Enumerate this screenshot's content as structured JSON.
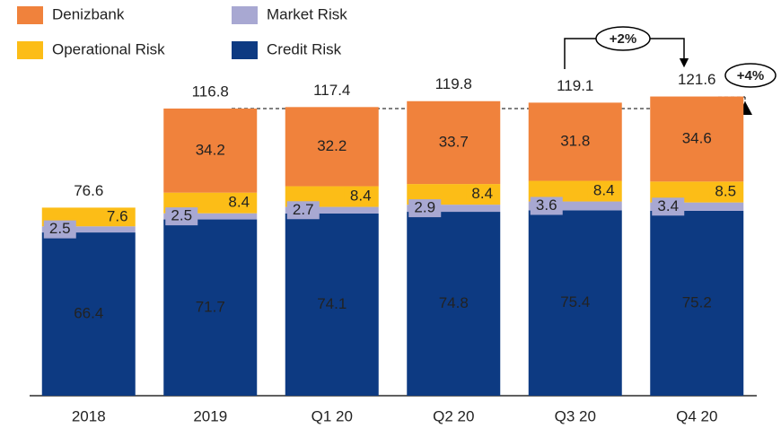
{
  "chart_data": {
    "type": "stacked_bar",
    "categories": [
      "2018",
      "2019",
      "Q1 20",
      "Q2 20",
      "Q3 20",
      "Q4 20"
    ],
    "series": [
      {
        "name": "Credit Risk",
        "color": "#0d3a82",
        "values": [
          66.4,
          71.7,
          74.1,
          74.8,
          75.4,
          75.2
        ]
      },
      {
        "name": "Market Risk",
        "color": "#a8a8d2",
        "values": [
          2.5,
          2.5,
          2.7,
          2.9,
          3.6,
          3.4
        ]
      },
      {
        "name": "Operational Risk",
        "color": "#fcbd17",
        "values": [
          7.6,
          8.4,
          8.4,
          8.4,
          8.4,
          8.5
        ]
      },
      {
        "name": "Denizbank",
        "color": "#f0823c",
        "values": [
          null,
          34.2,
          32.2,
          33.7,
          31.8,
          34.6
        ]
      }
    ],
    "totals": [
      76.6,
      116.8,
      117.4,
      119.8,
      119.1,
      121.6
    ],
    "annotations": [
      "+2%",
      "+4%"
    ]
  }
}
